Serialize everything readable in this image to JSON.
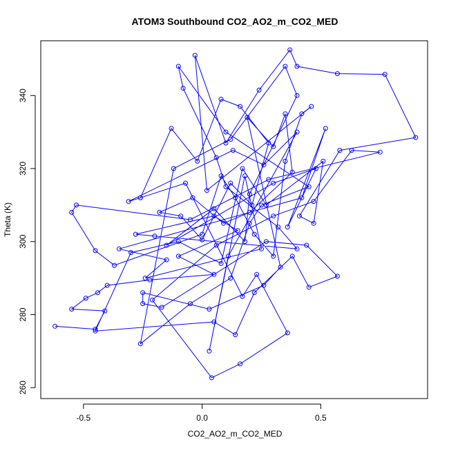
{
  "chart_data": {
    "type": "line",
    "title": "ATOM3 Southbound CO2_AO2_m_CO2_MED",
    "xlabel": "CO2_AO2_m_CO2_MED",
    "ylabel": "Theta (K)",
    "xlim": [
      -0.68,
      0.95
    ],
    "ylim": [
      257,
      355
    ],
    "xticks": [
      -0.5,
      0.0,
      0.5
    ],
    "xtick_labels": [
      "-0.5",
      "0.0",
      "0.5"
    ],
    "yticks": [
      260,
      280,
      300,
      320,
      340
    ],
    "ytick_labels": [
      "260",
      "280",
      "300",
      "320",
      "340"
    ],
    "grid": false,
    "legend": "none",
    "colors": {
      "series": "#0000ff",
      "frame": "#000000"
    },
    "series": [
      {
        "marker": "open-circle",
        "points": [
          [
            -0.62,
            276.8
          ],
          [
            -0.45,
            276
          ],
          [
            -0.41,
            281
          ],
          [
            -0.55,
            281.5
          ],
          [
            -0.49,
            284.5
          ],
          [
            -0.44,
            286
          ],
          [
            -0.4,
            288
          ],
          [
            -0.22,
            289.5
          ],
          [
            0.05,
            291
          ],
          [
            -0.1,
            296
          ],
          [
            0.15,
            303
          ],
          [
            0.05,
            307
          ],
          [
            -0.28,
            302
          ],
          [
            -0.2,
            301.5
          ],
          [
            0.4,
            298
          ],
          [
            0.32,
            304
          ],
          [
            0.1,
            315
          ],
          [
            0.06,
            323
          ],
          [
            -0.08,
            342
          ],
          [
            -0.1,
            348
          ],
          [
            0.1,
            330
          ],
          [
            0.45,
            315
          ],
          [
            0.25,
            310
          ],
          [
            0.2,
            305
          ],
          [
            0.12,
            290
          ],
          [
            -0.05,
            283
          ],
          [
            -0.26,
            272
          ],
          [
            -0.12,
            320
          ],
          [
            0.12,
            328
          ],
          [
            0.35,
            348
          ],
          [
            0.4,
            340
          ],
          [
            0.2,
            313
          ],
          [
            0.18,
            300
          ],
          [
            0.05,
            309
          ],
          [
            -0.15,
            299
          ],
          [
            0.3,
            316
          ],
          [
            0.48,
            320
          ],
          [
            0.36,
            304
          ],
          [
            0.52,
            331
          ],
          [
            0.42,
            312
          ],
          [
            -0.35,
            298
          ],
          [
            -0.15,
            295
          ],
          [
            -0.24,
            290
          ],
          [
            0.25,
            298
          ],
          [
            0.18,
            318
          ],
          [
            0.03,
            270
          ],
          [
            0.11,
            296
          ],
          [
            0.4,
            330
          ],
          [
            0.26,
            321
          ],
          [
            0.13,
            325
          ],
          [
            -0.31,
            311
          ],
          [
            -0.26,
            312
          ],
          [
            -0.07,
            316
          ],
          [
            0.17,
            285
          ],
          [
            0.23,
            291
          ],
          [
            0.36,
            275
          ],
          [
            0.16,
            266.5
          ],
          [
            0.04,
            262.7
          ],
          [
            -0.21,
            284
          ],
          [
            0.06,
            299
          ],
          [
            0.3,
            307
          ],
          [
            0.47,
            311
          ],
          [
            0.63,
            325
          ],
          [
            0.75,
            324.5
          ],
          [
            0.28,
            317
          ],
          [
            -0.05,
            306
          ],
          [
            -0.53,
            310
          ],
          [
            -0.55,
            308
          ],
          [
            -0.45,
            297.5
          ],
          [
            -0.37,
            293.5
          ],
          [
            0.0,
            302
          ],
          [
            0.08,
            318
          ],
          [
            0.14,
            312
          ],
          [
            0.22,
            302
          ],
          [
            0.3,
            296
          ],
          [
            0.35,
            322
          ],
          [
            0.42,
            335
          ],
          [
            0.46,
            337
          ],
          [
            0.02,
            314
          ],
          [
            -0.03,
            351
          ],
          [
            0.1,
            327
          ],
          [
            0.24,
            341.5
          ],
          [
            0.37,
            352.5
          ],
          [
            0.4,
            348
          ],
          [
            0.57,
            346
          ],
          [
            0.77,
            345.8
          ],
          [
            0.9,
            328.5
          ],
          [
            0.58,
            325
          ],
          [
            0.41,
            307
          ],
          [
            0.47,
            305
          ],
          [
            0.51,
            322
          ],
          [
            0.27,
            310
          ],
          [
            0.17,
            320
          ],
          [
            0.08,
            294
          ],
          [
            -0.1,
            300
          ],
          [
            -0.3,
            297
          ],
          [
            -0.45,
            275.5
          ],
          [
            0.05,
            278
          ],
          [
            0.14,
            274.5
          ],
          [
            0.22,
            286
          ],
          [
            0.38,
            296
          ],
          [
            0.45,
            287.5
          ],
          [
            0.57,
            290.5
          ],
          [
            0.44,
            299
          ],
          [
            0.27,
            300
          ],
          [
            -0.17,
            282
          ],
          [
            -0.25,
            283
          ],
          [
            -0.25,
            286
          ],
          [
            0.03,
            281.5
          ],
          [
            0.26,
            288
          ],
          [
            0.33,
            293
          ],
          [
            0.19,
            334
          ],
          [
            0.3,
            326
          ],
          [
            0.35,
            335
          ],
          [
            0.38,
            319
          ],
          [
            0.2,
            308
          ],
          [
            0.09,
            305
          ],
          [
            -0.04,
            312
          ],
          [
            -0.18,
            308
          ],
          [
            -0.09,
            307
          ],
          [
            0.0,
            300.5
          ],
          [
            0.12,
            316
          ],
          [
            0.21,
            310
          ],
          [
            0.28,
            327
          ],
          [
            0.16,
            337
          ],
          [
            0.08,
            339
          ],
          [
            -0.02,
            322
          ],
          [
            -0.13,
            331
          ],
          [
            -0.26,
            312
          ]
        ]
      }
    ]
  }
}
